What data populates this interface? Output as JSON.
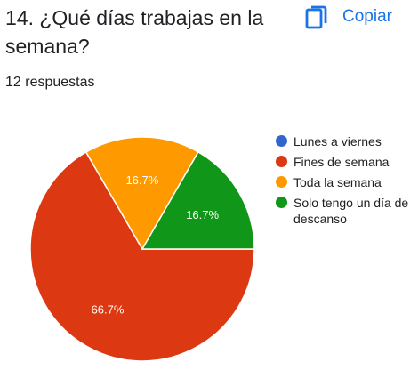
{
  "question": {
    "title": "14. ¿Qué días trabajas en la semana?",
    "response_count": "12 respuestas"
  },
  "toolbar": {
    "copy_label": "Copiar",
    "copy_icon": "copy-icon",
    "accent": "#1a73e8"
  },
  "chart_data": {
    "type": "pie",
    "title": "",
    "slices": [
      {
        "name": "Lunes a viernes",
        "value": 0,
        "label": "",
        "color": "#3366cc"
      },
      {
        "name": "Fines de semana",
        "value": 66.7,
        "label": "66.7%",
        "color": "#dc3912"
      },
      {
        "name": "Toda la semana",
        "value": 16.7,
        "label": "16.7%",
        "color": "#ff9900"
      },
      {
        "name": "Solo tengo un día de descanso",
        "value": 16.7,
        "label": "16.7%",
        "color": "#109618"
      }
    ],
    "legend_placement": "right"
  }
}
